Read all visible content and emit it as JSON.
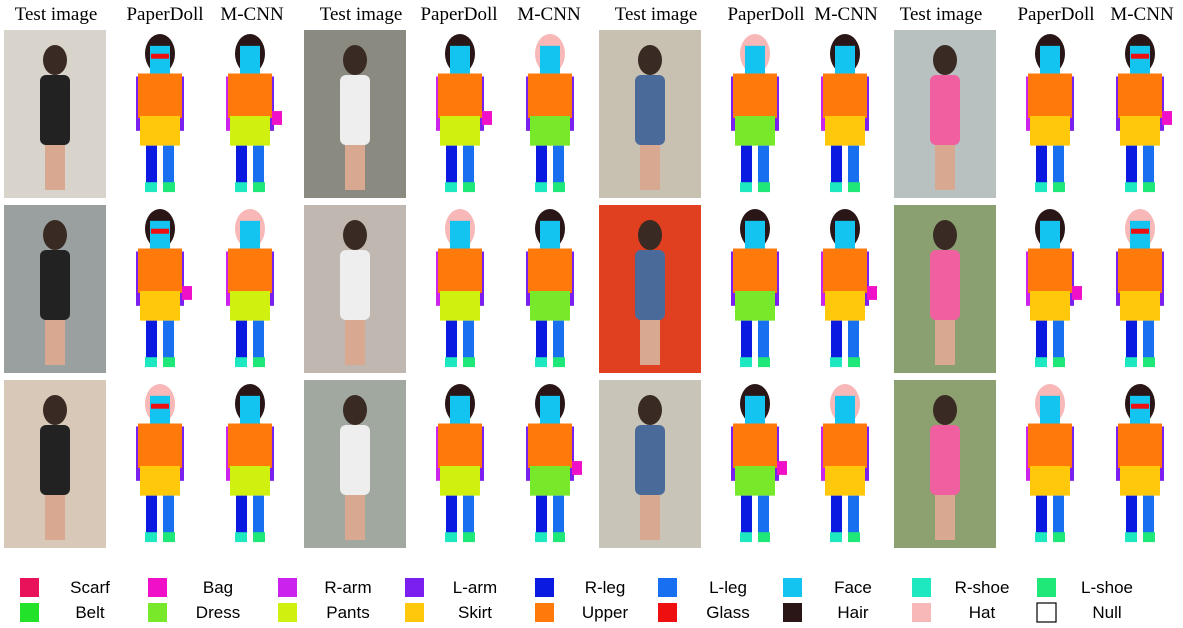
{
  "header": {
    "columns": [
      "Test image",
      "PaperDoll",
      "M-CNN",
      "Test image",
      "PaperDoll",
      "M-CNN",
      "Test image",
      "PaperDoll",
      "M-CNN",
      "Test image",
      "PaperDoll",
      "M-CNN"
    ]
  },
  "legend": {
    "items": [
      {
        "label": "Scarf",
        "color": "#e8125a"
      },
      {
        "label": "Bag",
        "color": "#f010c8"
      },
      {
        "label": "R-arm",
        "color": "#cc22ee"
      },
      {
        "label": "L-arm",
        "color": "#7a1ff0"
      },
      {
        "label": "R-leg",
        "color": "#0a1ae0"
      },
      {
        "label": "L-leg",
        "color": "#1870f0"
      },
      {
        "label": "Face",
        "color": "#14c4f0"
      },
      {
        "label": "R-shoe",
        "color": "#1ee8c0"
      },
      {
        "label": "L-shoe",
        "color": "#20e878"
      },
      {
        "label": "Belt",
        "color": "#22e22a"
      },
      {
        "label": "Dress",
        "color": "#78e82a"
      },
      {
        "label": "Pants",
        "color": "#d0f010"
      },
      {
        "label": "Skirt",
        "color": "#ffc80a"
      },
      {
        "label": "Upper",
        "color": "#ff7a0a"
      },
      {
        "label": "Glass",
        "color": "#ee1010"
      },
      {
        "label": "Hair",
        "color": "#2a1616"
      },
      {
        "label": "Hat",
        "color": "#f8b8b8"
      },
      {
        "label": "Null",
        "color": "#ffffff"
      }
    ]
  }
}
